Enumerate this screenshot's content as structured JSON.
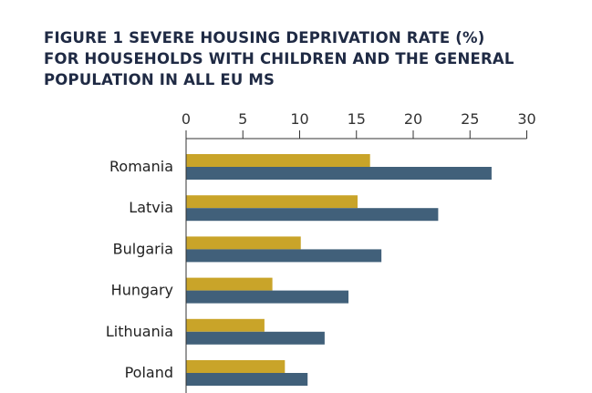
{
  "title_lines": [
    "FIGURE 1 SEVERE HOUSING DEPRIVATION RATE (%)",
    "FOR HOUSEHOLDS WITH CHILDREN AND THE GENERAL",
    "POPULATION IN ALL EU MS"
  ],
  "colors": {
    "series_a": "#c9a429",
    "series_b": "#41607a",
    "axis": "#333333"
  },
  "chart_data": {
    "type": "bar",
    "orientation": "horizontal",
    "title": "FIGURE 1 SEVERE HOUSING DEPRIVATION RATE (%) FOR HOUSEHOLDS WITH CHILDREN AND THE GENERAL POPULATION IN ALL EU MS",
    "categories": [
      "Romania",
      "Latvia",
      "Bulgaria",
      "Hungary",
      "Lithuania",
      "Poland"
    ],
    "series": [
      {
        "values": [
          16.2,
          15.1,
          10.1,
          7.6,
          6.9,
          8.7
        ]
      },
      {
        "values": [
          26.9,
          22.2,
          17.2,
          14.3,
          12.2,
          10.7
        ]
      }
    ],
    "xlim": [
      0,
      30
    ],
    "xticks": [
      "0",
      "5",
      "10",
      "15",
      "20",
      "25",
      "30"
    ],
    "xaxis_position": "top",
    "grid": false,
    "legend": false
  }
}
